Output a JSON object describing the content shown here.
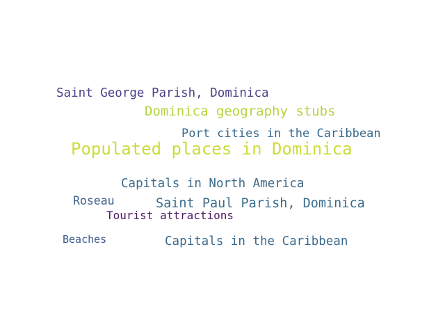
{
  "words": [
    {
      "id": "populated_places",
      "text": "Populated places in Dominica",
      "color": "#cadd3a"
    },
    {
      "id": "dominica_geo",
      "text": "Dominica geography stubs",
      "color": "#b3d43f"
    },
    {
      "id": "saint_george",
      "text": "Saint George Parish, Dominica",
      "color": "#4d3f86"
    },
    {
      "id": "port_cities",
      "text": "Port cities in the Caribbean",
      "color": "#37688c"
    },
    {
      "id": "capitals_na",
      "text": "Capitals in North America",
      "color": "#3e6a8b"
    },
    {
      "id": "saint_paul",
      "text": "Saint Paul Parish, Dominica",
      "color": "#3a6c8b"
    },
    {
      "id": "roseau",
      "text": "Roseau",
      "color": "#3f5f8b"
    },
    {
      "id": "tourist",
      "text": "Tourist attractions",
      "color": "#4b1765"
    },
    {
      "id": "beaches",
      "text": "Beaches",
      "color": "#3f5a8c"
    },
    {
      "id": "capitals_carib",
      "text": "Capitals in the Caribbean",
      "color": "#3c6a8c"
    }
  ]
}
